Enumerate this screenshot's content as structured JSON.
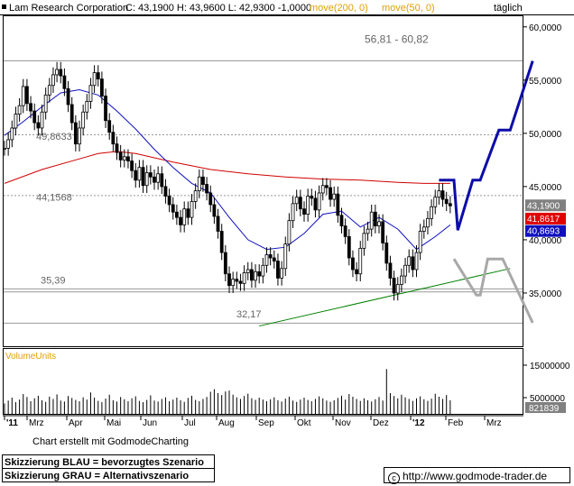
{
  "header": {
    "title": "Lam Research Corporation",
    "quote": "C: 43,1900  H: 43,9600  L: 42,9300  -1,0000",
    "ma_long": "move(200, 0)",
    "ma_short": "move(50, 0)",
    "period": "täglich"
  },
  "volume_label": "VolumeUnits",
  "credit": "Chart erstellt mit GodmodeCharting",
  "legend": {
    "blue": "Skizzierung BLAU = bevorzugtes Szenario",
    "grey": "Skizzierung GRAU = Alternativszenario"
  },
  "website": "http://www.godmode-trader.de",
  "colors": {
    "price": "#000000",
    "ma200": "#d00000",
    "ma50": "#1010c0",
    "trend": "#008000",
    "scenario_blue": "#0c0ca8",
    "scenario_grey": "#a8a8a8"
  },
  "chart_data": {
    "type": "candlestick",
    "ylim": [
      30,
      61
    ],
    "x_ticks": [
      "'11",
      "Mrz",
      "Apr",
      "Mai",
      "Jun",
      "Jul",
      "Aug",
      "Sep",
      "Okt",
      "Nov",
      "Dez",
      "'12",
      "Feb",
      "Mrz"
    ],
    "y_ticks": [
      "60,0000",
      "55,0000",
      "50,0000",
      "45,0000",
      "40,0000",
      "35,0000"
    ],
    "price_badges": [
      {
        "label": "43,1900",
        "value": 43.19
      },
      {
        "label": "41,8617",
        "value": 41.8617
      },
      {
        "label": "40,8693",
        "value": 40.8693
      }
    ],
    "level_labels": [
      {
        "label": "56,81 - 60,82",
        "value": 56.81
      },
      {
        "label": "49,8633",
        "value": 49.8633
      },
      {
        "label": "44,1568",
        "value": 44.1568
      },
      {
        "label": "35,39",
        "value": 35.39
      },
      {
        "label": "32,17",
        "value": 32.17
      }
    ],
    "price_path": [
      [
        0,
        48.6
      ],
      [
        1,
        49.4
      ],
      [
        2,
        50.5
      ],
      [
        3,
        51.8
      ],
      [
        4,
        52.6
      ],
      [
        5,
        54.4
      ],
      [
        6,
        52.8
      ],
      [
        7,
        52.1
      ],
      [
        8,
        51.0
      ],
      [
        9,
        50.5
      ],
      [
        10,
        52.0
      ],
      [
        11,
        53.6
      ],
      [
        12,
        54.5
      ],
      [
        13,
        55.5
      ],
      [
        14,
        56.0
      ],
      [
        15,
        55.4
      ],
      [
        16,
        54.2
      ],
      [
        17,
        52.7
      ],
      [
        18,
        51.0
      ],
      [
        19,
        49.0
      ],
      [
        20,
        50.5
      ],
      [
        21,
        52.0
      ],
      [
        22,
        53.0
      ],
      [
        23,
        54.5
      ],
      [
        24,
        55.7
      ],
      [
        25,
        55.1
      ],
      [
        26,
        53.5
      ],
      [
        27,
        51.2
      ],
      [
        28,
        50.1
      ],
      [
        29,
        49.0
      ],
      [
        30,
        48.2
      ],
      [
        31,
        47.5
      ],
      [
        32,
        47.8
      ],
      [
        33,
        47.4
      ],
      [
        34,
        46.5
      ],
      [
        35,
        45.6
      ],
      [
        36,
        46.8
      ],
      [
        37,
        45.1
      ],
      [
        38,
        46.3
      ],
      [
        39,
        45.9
      ],
      [
        40,
        45.4
      ],
      [
        41,
        46.2
      ],
      [
        42,
        45.0
      ],
      [
        43,
        44.1
      ],
      [
        44,
        43.3
      ],
      [
        45,
        42.6
      ],
      [
        46,
        42.1
      ],
      [
        47,
        41.4
      ],
      [
        48,
        42.9
      ],
      [
        49,
        42.1
      ],
      [
        50,
        43.6
      ],
      [
        51,
        44.6
      ],
      [
        52,
        45.9
      ],
      [
        53,
        45.2
      ],
      [
        54,
        44.4
      ],
      [
        55,
        43.3
      ],
      [
        56,
        42.2
      ],
      [
        57,
        40.8
      ],
      [
        58,
        38.8
      ],
      [
        59,
        36.8
      ],
      [
        60,
        35.7
      ],
      [
        61,
        36.3
      ],
      [
        62,
        36.1
      ],
      [
        63,
        35.9
      ],
      [
        64,
        36.9
      ],
      [
        65,
        37.2
      ],
      [
        66,
        36.2
      ],
      [
        67,
        37.0
      ],
      [
        68,
        36.6
      ],
      [
        69,
        37.6
      ],
      [
        70,
        38.6
      ],
      [
        71,
        38.3
      ],
      [
        72,
        38.0
      ],
      [
        73,
        36.4
      ],
      [
        74,
        37.3
      ],
      [
        75,
        39.6
      ],
      [
        76,
        41.8
      ],
      [
        77,
        43.4
      ],
      [
        78,
        44.0
      ],
      [
        79,
        42.9
      ],
      [
        80,
        42.4
      ],
      [
        81,
        44.1
      ],
      [
        82,
        43.9
      ],
      [
        83,
        42.8
      ],
      [
        84,
        44.4
      ],
      [
        85,
        45.1
      ],
      [
        86,
        44.9
      ],
      [
        87,
        43.8
      ],
      [
        88,
        44.3
      ],
      [
        89,
        42.3
      ],
      [
        90,
        41.3
      ],
      [
        91,
        40.3
      ],
      [
        92,
        38.3
      ],
      [
        93,
        37.2
      ],
      [
        94,
        36.8
      ],
      [
        95,
        39.2
      ],
      [
        96,
        40.6
      ],
      [
        97,
        41.0
      ],
      [
        98,
        42.6
      ],
      [
        99,
        41.3
      ],
      [
        100,
        41.7
      ],
      [
        101,
        39.7
      ],
      [
        102,
        37.8
      ],
      [
        103,
        36.4
      ],
      [
        104,
        35.0
      ],
      [
        105,
        35.8
      ],
      [
        106,
        36.6
      ],
      [
        107,
        37.6
      ],
      [
        108,
        38.4
      ],
      [
        109,
        37.2
      ],
      [
        110,
        38.8
      ],
      [
        111,
        40.8
      ],
      [
        112,
        41.2
      ],
      [
        113,
        42.0
      ],
      [
        114,
        43.1
      ],
      [
        115,
        44.0
      ],
      [
        116,
        44.6
      ],
      [
        117,
        43.8
      ],
      [
        118,
        43.4
      ],
      [
        119,
        43.19
      ]
    ],
    "ma200_path": [
      [
        0,
        45.3
      ],
      [
        10,
        46.6
      ],
      [
        20,
        47.6
      ],
      [
        25,
        48.1
      ],
      [
        30,
        48.3
      ],
      [
        35,
        48.1
      ],
      [
        45,
        47.3
      ],
      [
        55,
        46.6
      ],
      [
        65,
        46.2
      ],
      [
        75,
        45.9
      ],
      [
        85,
        45.7
      ],
      [
        95,
        45.6
      ],
      [
        105,
        45.4
      ],
      [
        112,
        45.3
      ],
      [
        119,
        45.3
      ]
    ],
    "ma50_path": [
      [
        0,
        49.8
      ],
      [
        5,
        51.1
      ],
      [
        10,
        52.5
      ],
      [
        15,
        53.8
      ],
      [
        20,
        54.1
      ],
      [
        25,
        53.6
      ],
      [
        30,
        52.1
      ],
      [
        35,
        50.4
      ],
      [
        40,
        48.5
      ],
      [
        45,
        46.8
      ],
      [
        50,
        45.3
      ],
      [
        55,
        44.4
      ],
      [
        60,
        42.1
      ],
      [
        65,
        40.0
      ],
      [
        70,
        39.1
      ],
      [
        75,
        39.3
      ],
      [
        80,
        40.6
      ],
      [
        85,
        42.4
      ],
      [
        90,
        42.7
      ],
      [
        95,
        41.2
      ],
      [
        100,
        42.1
      ],
      [
        105,
        41.0
      ],
      [
        110,
        39.1
      ],
      [
        115,
        40.3
      ],
      [
        119,
        41.4
      ]
    ],
    "trend_line": [
      [
        68,
        31.9
      ],
      [
        135,
        37.3
      ]
    ],
    "scenario_blue": [
      [
        116,
        45.6
      ],
      [
        120,
        45.6
      ],
      [
        121,
        40.9
      ],
      [
        125,
        45.6
      ],
      [
        127,
        45.6
      ],
      [
        132,
        50.3
      ],
      [
        135,
        50.3
      ],
      [
        141,
        56.8
      ]
    ],
    "scenario_grey": [
      [
        120,
        38.2
      ],
      [
        126,
        34.8
      ],
      [
        127,
        34.8
      ],
      [
        129,
        38.2
      ],
      [
        133,
        38.2
      ],
      [
        141,
        32.2
      ]
    ],
    "volume_ylim": [
      0,
      20000000
    ],
    "volume_ticks": [
      "15000000",
      "5000000"
    ],
    "volume_last": "821839",
    "volume": [
      3.2,
      4.1,
      5.0,
      3.6,
      4.4,
      6.1,
      5.2,
      3.9,
      4.8,
      5.6,
      4.2,
      3.7,
      5.3,
      4.6,
      6.0,
      4.1,
      3.8,
      5.5,
      4.9,
      4.3,
      3.9,
      5.1,
      4.4,
      6.6,
      5.0,
      4.0,
      3.6,
      4.7,
      5.9,
      4.2,
      3.8,
      5.2,
      4.5,
      3.9,
      4.8,
      5.4,
      4.0,
      3.6,
      4.3,
      5.7,
      4.1,
      3.8,
      4.6,
      5.1,
      3.9,
      4.4,
      5.0,
      4.2,
      3.7,
      4.9,
      5.6,
      4.3,
      3.9,
      4.6,
      5.2,
      6.8,
      7.6,
      6.4,
      5.8,
      6.9,
      7.2,
      5.9,
      5.1,
      4.6,
      5.5,
      6.2,
      4.8,
      4.3,
      5.0,
      4.4,
      3.9,
      4.5,
      5.1,
      4.2,
      3.8,
      4.7,
      5.3,
      4.1,
      3.7,
      4.4,
      5.0,
      4.3,
      3.9,
      4.6,
      5.4,
      4.8,
      4.1,
      3.7,
      4.2,
      4.9,
      5.6,
      4.4,
      6.1,
      5.3,
      4.6,
      4.0,
      4.8,
      4.2,
      3.8,
      4.5,
      5.2,
      4.1,
      13.8,
      6.4,
      5.5,
      4.8,
      5.9,
      5.1,
      4.6,
      4.0,
      4.8,
      5.4,
      4.5,
      4.0,
      4.7,
      6.2,
      5.3,
      4.6,
      5.8,
      4.2
    ]
  }
}
